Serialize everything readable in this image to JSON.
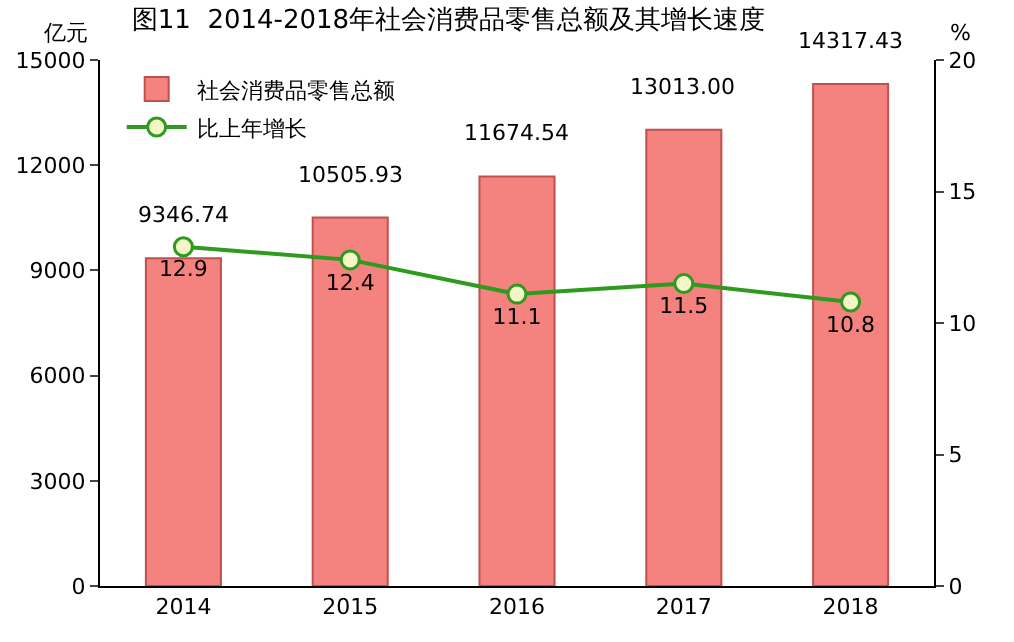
{
  "chart_data": {
    "type": "bar",
    "title": "图11  2014-2018年社会消费品零售总额及其增长速度",
    "ylabel": "亿元",
    "y2label": "%",
    "categories": [
      "2014",
      "2015",
      "2016",
      "2017",
      "2018"
    ],
    "series": [
      {
        "name": "社会消费品零售总额",
        "color": "#f4827f",
        "values": [
          9346.74,
          10505.93,
          11674.54,
          13013.0,
          14317.43
        ],
        "value_labels": [
          "9346.74",
          "10505.93",
          "11674.54",
          "13013.00",
          "14317.43"
        ]
      },
      {
        "name": "比上年增长",
        "type": "line",
        "axis": "y2",
        "color": "#2e9a1e",
        "marker": "circle",
        "values": [
          12.9,
          12.4,
          11.1,
          11.5,
          10.8
        ],
        "value_labels": [
          "12.9",
          "12.4",
          "11.1",
          "11.5",
          "10.8"
        ]
      }
    ],
    "ylim": [
      0,
      15000
    ],
    "yticks": [
      0,
      3000,
      6000,
      9000,
      12000,
      15000
    ],
    "y2lim": [
      0,
      20
    ],
    "y2ticks": [
      0,
      5,
      10,
      15,
      20
    ],
    "grid": false,
    "legend": "top left"
  }
}
